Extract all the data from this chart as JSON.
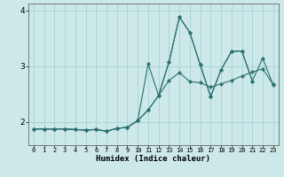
{
  "xlabel": "Humidex (Indice chaleur)",
  "bg_color": "#cce8e8",
  "grid_color": "#9ecfcf",
  "line_color": "#2d7070",
  "marker_color": "#2d7070",
  "xlim": [
    -0.5,
    23.5
  ],
  "ylim": [
    1.58,
    4.12
  ],
  "yticks": [
    2,
    3,
    4
  ],
  "xtick_labels": [
    "0",
    "1",
    "2",
    "3",
    "4",
    "5",
    "6",
    "7",
    "8",
    "9",
    "10",
    "11",
    "12",
    "13",
    "14",
    "15",
    "16",
    "17",
    "18",
    "19",
    "20",
    "21",
    "22",
    "23"
  ],
  "series1_x": [
    0,
    1,
    2,
    3,
    4,
    5,
    6,
    7,
    8,
    9,
    10,
    11,
    12,
    13,
    14,
    15,
    16,
    17,
    18,
    19,
    20,
    21
  ],
  "series1_y": [
    1.87,
    1.87,
    1.87,
    1.87,
    1.86,
    1.85,
    1.86,
    1.83,
    1.88,
    1.9,
    2.02,
    3.04,
    2.47,
    3.07,
    3.88,
    3.6,
    3.02,
    2.45,
    2.93,
    3.26,
    3.27,
    2.73
  ],
  "series2_x": [
    0,
    1,
    2,
    3,
    4,
    5,
    6,
    7,
    8,
    9,
    10,
    11,
    12,
    13,
    14,
    15,
    16,
    17,
    18,
    19,
    20,
    21,
    22,
    23
  ],
  "series2_y": [
    1.87,
    1.87,
    1.87,
    1.87,
    1.86,
    1.85,
    1.86,
    1.83,
    1.88,
    1.9,
    2.02,
    2.21,
    2.47,
    3.07,
    3.88,
    3.6,
    3.02,
    2.45,
    2.93,
    3.26,
    3.27,
    2.73,
    3.14,
    2.66
  ],
  "series3_x": [
    0,
    1,
    2,
    3,
    4,
    5,
    6,
    7,
    8,
    9,
    10,
    11,
    12,
    13,
    14,
    15,
    16,
    17,
    18,
    19,
    20,
    21,
    22,
    23
  ],
  "series3_y": [
    1.87,
    1.87,
    1.87,
    1.87,
    1.86,
    1.85,
    1.86,
    1.83,
    1.88,
    1.9,
    2.02,
    2.21,
    2.47,
    2.74,
    2.88,
    2.72,
    2.7,
    2.62,
    2.68,
    2.74,
    2.82,
    2.89,
    2.95,
    2.67
  ]
}
